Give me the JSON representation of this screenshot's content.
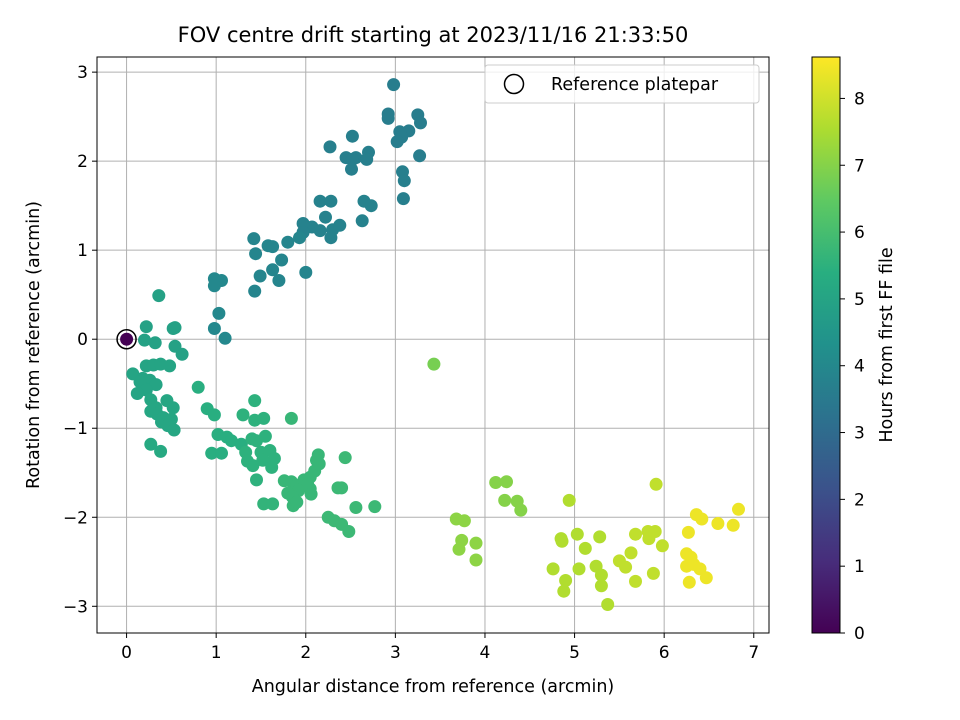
{
  "chart_data": {
    "type": "scatter",
    "title": "FOV centre drift starting at 2023/11/16 21:33:50",
    "xlabel": "Angular distance from reference (arcmin)",
    "ylabel": "Rotation from reference (arcmin)",
    "colorbar_label": "Hours from first FF file",
    "colormap": "viridis",
    "xlim": [
      -0.33,
      7.17
    ],
    "ylim": [
      -3.3,
      3.17
    ],
    "xticks": [
      0,
      1,
      2,
      3,
      4,
      5,
      6,
      7
    ],
    "yticks": [
      -3,
      -2,
      -1,
      0,
      1,
      2,
      3
    ],
    "clim": [
      0,
      8.62
    ],
    "cticks": [
      0,
      1,
      2,
      3,
      4,
      5,
      6,
      7,
      8
    ],
    "grid": true,
    "legend": {
      "placement": "top-right",
      "entries": [
        {
          "label": "Reference platepar",
          "marker": "open-circle"
        }
      ]
    },
    "reference_point": {
      "x": 0,
      "y": 0
    },
    "points": [
      {
        "x": 0.0,
        "y": 0.0,
        "c": 0.0
      },
      {
        "x": 2.98,
        "y": 2.86,
        "c": 3.6
      },
      {
        "x": 3.25,
        "y": 2.52,
        "c": 3.6
      },
      {
        "x": 2.92,
        "y": 2.53,
        "c": 3.6
      },
      {
        "x": 2.92,
        "y": 2.48,
        "c": 3.6
      },
      {
        "x": 3.15,
        "y": 2.34,
        "c": 3.6
      },
      {
        "x": 3.28,
        "y": 2.43,
        "c": 3.6
      },
      {
        "x": 3.05,
        "y": 2.33,
        "c": 3.6
      },
      {
        "x": 3.07,
        "y": 2.27,
        "c": 3.6
      },
      {
        "x": 3.02,
        "y": 2.22,
        "c": 3.6
      },
      {
        "x": 3.27,
        "y": 2.06,
        "c": 3.6
      },
      {
        "x": 2.52,
        "y": 2.28,
        "c": 3.7
      },
      {
        "x": 2.27,
        "y": 2.16,
        "c": 3.7
      },
      {
        "x": 2.45,
        "y": 2.04,
        "c": 3.7
      },
      {
        "x": 2.56,
        "y": 2.04,
        "c": 3.7
      },
      {
        "x": 2.52,
        "y": 2.02,
        "c": 3.7
      },
      {
        "x": 2.7,
        "y": 2.1,
        "c": 3.7
      },
      {
        "x": 2.68,
        "y": 2.02,
        "c": 3.7
      },
      {
        "x": 2.51,
        "y": 1.91,
        "c": 3.7
      },
      {
        "x": 3.08,
        "y": 1.88,
        "c": 3.7
      },
      {
        "x": 3.1,
        "y": 1.78,
        "c": 3.7
      },
      {
        "x": 3.09,
        "y": 1.58,
        "c": 3.7
      },
      {
        "x": 2.16,
        "y": 1.55,
        "c": 3.8
      },
      {
        "x": 2.28,
        "y": 1.55,
        "c": 3.8
      },
      {
        "x": 2.65,
        "y": 1.55,
        "c": 3.8
      },
      {
        "x": 2.73,
        "y": 1.5,
        "c": 3.8
      },
      {
        "x": 2.22,
        "y": 1.37,
        "c": 3.8
      },
      {
        "x": 2.63,
        "y": 1.33,
        "c": 3.8
      },
      {
        "x": 1.97,
        "y": 1.3,
        "c": 3.8
      },
      {
        "x": 2.07,
        "y": 1.26,
        "c": 3.8
      },
      {
        "x": 2.16,
        "y": 1.22,
        "c": 3.8
      },
      {
        "x": 2.3,
        "y": 1.23,
        "c": 3.8
      },
      {
        "x": 2.38,
        "y": 1.28,
        "c": 3.8
      },
      {
        "x": 1.97,
        "y": 1.2,
        "c": 3.8
      },
      {
        "x": 2.28,
        "y": 1.14,
        "c": 3.8
      },
      {
        "x": 1.42,
        "y": 1.13,
        "c": 3.9
      },
      {
        "x": 1.93,
        "y": 1.14,
        "c": 3.9
      },
      {
        "x": 1.58,
        "y": 1.05,
        "c": 3.9
      },
      {
        "x": 1.63,
        "y": 1.04,
        "c": 3.9
      },
      {
        "x": 1.8,
        "y": 1.09,
        "c": 3.9
      },
      {
        "x": 1.44,
        "y": 0.96,
        "c": 3.9
      },
      {
        "x": 1.73,
        "y": 0.89,
        "c": 3.9
      },
      {
        "x": 1.63,
        "y": 0.78,
        "c": 3.9
      },
      {
        "x": 1.49,
        "y": 0.71,
        "c": 3.9
      },
      {
        "x": 1.7,
        "y": 0.66,
        "c": 3.9
      },
      {
        "x": 2.0,
        "y": 0.75,
        "c": 3.9
      },
      {
        "x": 1.43,
        "y": 0.54,
        "c": 3.9
      },
      {
        "x": 0.98,
        "y": 0.68,
        "c": 4.0
      },
      {
        "x": 1.06,
        "y": 0.66,
        "c": 4.0
      },
      {
        "x": 0.98,
        "y": 0.6,
        "c": 4.0
      },
      {
        "x": 1.03,
        "y": 0.29,
        "c": 4.0
      },
      {
        "x": 0.98,
        "y": 0.12,
        "c": 4.0
      },
      {
        "x": 1.1,
        "y": 0.01,
        "c": 4.0
      },
      {
        "x": 0.36,
        "y": 0.49,
        "c": 4.9
      },
      {
        "x": 0.22,
        "y": 0.14,
        "c": 4.9
      },
      {
        "x": 0.54,
        "y": 0.13,
        "c": 4.9
      },
      {
        "x": 0.52,
        "y": 0.12,
        "c": 4.9
      },
      {
        "x": 0.2,
        "y": -0.01,
        "c": 4.9
      },
      {
        "x": 0.32,
        "y": -0.04,
        "c": 4.9
      },
      {
        "x": 0.54,
        "y": -0.08,
        "c": 4.9
      },
      {
        "x": 0.62,
        "y": -0.17,
        "c": 4.9
      },
      {
        "x": 0.22,
        "y": -0.3,
        "c": 5.0
      },
      {
        "x": 0.3,
        "y": -0.29,
        "c": 5.0
      },
      {
        "x": 0.38,
        "y": -0.28,
        "c": 5.0
      },
      {
        "x": 0.48,
        "y": -0.3,
        "c": 5.0
      },
      {
        "x": 0.07,
        "y": -0.39,
        "c": 5.0
      },
      {
        "x": 0.18,
        "y": -0.44,
        "c": 5.0
      },
      {
        "x": 0.26,
        "y": -0.46,
        "c": 5.0
      },
      {
        "x": 0.33,
        "y": -0.51,
        "c": 5.0
      },
      {
        "x": 0.15,
        "y": -0.48,
        "c": 5.0
      },
      {
        "x": 0.22,
        "y": -0.57,
        "c": 5.0
      },
      {
        "x": 0.12,
        "y": -0.61,
        "c": 5.0
      },
      {
        "x": 0.27,
        "y": -0.68,
        "c": 5.1
      },
      {
        "x": 0.45,
        "y": -0.69,
        "c": 5.1
      },
      {
        "x": 0.33,
        "y": -0.77,
        "c": 5.1
      },
      {
        "x": 0.52,
        "y": -0.77,
        "c": 5.1
      },
      {
        "x": 0.27,
        "y": -0.81,
        "c": 5.1
      },
      {
        "x": 0.34,
        "y": -0.84,
        "c": 5.1
      },
      {
        "x": 0.41,
        "y": -0.88,
        "c": 5.1
      },
      {
        "x": 0.39,
        "y": -0.93,
        "c": 5.1
      },
      {
        "x": 0.5,
        "y": -0.9,
        "c": 5.1
      },
      {
        "x": 0.46,
        "y": -0.97,
        "c": 5.1
      },
      {
        "x": 0.53,
        "y": -1.02,
        "c": 5.1
      },
      {
        "x": 0.27,
        "y": -1.18,
        "c": 5.2
      },
      {
        "x": 0.38,
        "y": -1.26,
        "c": 5.2
      },
      {
        "x": 0.8,
        "y": -0.54,
        "c": 5.4
      },
      {
        "x": 0.9,
        "y": -0.78,
        "c": 5.4
      },
      {
        "x": 0.98,
        "y": -0.85,
        "c": 5.4
      },
      {
        "x": 1.02,
        "y": -1.07,
        "c": 5.4
      },
      {
        "x": 1.12,
        "y": -1.1,
        "c": 5.4
      },
      {
        "x": 1.17,
        "y": -1.14,
        "c": 5.4
      },
      {
        "x": 0.95,
        "y": -1.28,
        "c": 5.4
      },
      {
        "x": 1.06,
        "y": -1.28,
        "c": 5.4
      },
      {
        "x": 1.28,
        "y": -1.18,
        "c": 5.4
      },
      {
        "x": 1.43,
        "y": -0.69,
        "c": 5.5
      },
      {
        "x": 1.3,
        "y": -0.85,
        "c": 5.5
      },
      {
        "x": 1.43,
        "y": -0.91,
        "c": 5.5
      },
      {
        "x": 1.53,
        "y": -0.89,
        "c": 5.5
      },
      {
        "x": 1.4,
        "y": -1.12,
        "c": 5.5
      },
      {
        "x": 1.45,
        "y": -1.14,
        "c": 5.5
      },
      {
        "x": 1.55,
        "y": -1.09,
        "c": 5.5
      },
      {
        "x": 1.33,
        "y": -1.27,
        "c": 5.5
      },
      {
        "x": 1.5,
        "y": -1.27,
        "c": 5.5
      },
      {
        "x": 1.6,
        "y": -1.25,
        "c": 5.5
      },
      {
        "x": 1.65,
        "y": -1.34,
        "c": 5.5
      },
      {
        "x": 1.35,
        "y": -1.37,
        "c": 5.5
      },
      {
        "x": 1.41,
        "y": -1.42,
        "c": 5.5
      },
      {
        "x": 1.52,
        "y": -1.36,
        "c": 5.5
      },
      {
        "x": 1.62,
        "y": -1.44,
        "c": 5.5
      },
      {
        "x": 1.45,
        "y": -1.58,
        "c": 5.5
      },
      {
        "x": 1.53,
        "y": -1.85,
        "c": 5.6
      },
      {
        "x": 1.63,
        "y": -1.85,
        "c": 5.6
      },
      {
        "x": 1.84,
        "y": -0.89,
        "c": 5.7
      },
      {
        "x": 1.76,
        "y": -1.59,
        "c": 5.7
      },
      {
        "x": 1.84,
        "y": -1.6,
        "c": 5.7
      },
      {
        "x": 1.9,
        "y": -1.64,
        "c": 5.7
      },
      {
        "x": 1.98,
        "y": -1.58,
        "c": 5.7
      },
      {
        "x": 2.05,
        "y": -1.55,
        "c": 5.7
      },
      {
        "x": 2.1,
        "y": -1.48,
        "c": 5.7
      },
      {
        "x": 2.02,
        "y": -1.63,
        "c": 5.7
      },
      {
        "x": 1.92,
        "y": -1.7,
        "c": 5.7
      },
      {
        "x": 2.05,
        "y": -1.68,
        "c": 5.7
      },
      {
        "x": 1.8,
        "y": -1.73,
        "c": 5.7
      },
      {
        "x": 1.85,
        "y": -1.77,
        "c": 5.7
      },
      {
        "x": 2.06,
        "y": -1.74,
        "c": 5.7
      },
      {
        "x": 1.86,
        "y": -1.87,
        "c": 5.7
      },
      {
        "x": 1.9,
        "y": -1.83,
        "c": 5.7
      },
      {
        "x": 2.14,
        "y": -1.3,
        "c": 5.7
      },
      {
        "x": 2.15,
        "y": -1.4,
        "c": 5.7
      },
      {
        "x": 2.12,
        "y": -1.36,
        "c": 5.7
      },
      {
        "x": 2.44,
        "y": -1.33,
        "c": 5.8
      },
      {
        "x": 2.36,
        "y": -1.67,
        "c": 5.8
      },
      {
        "x": 2.4,
        "y": -1.67,
        "c": 5.8
      },
      {
        "x": 2.25,
        "y": -2.0,
        "c": 5.8
      },
      {
        "x": 2.32,
        "y": -2.04,
        "c": 5.8
      },
      {
        "x": 2.4,
        "y": -2.08,
        "c": 5.8
      },
      {
        "x": 2.48,
        "y": -2.16,
        "c": 5.8
      },
      {
        "x": 2.56,
        "y": -1.89,
        "c": 5.8
      },
      {
        "x": 2.77,
        "y": -1.88,
        "c": 5.8
      },
      {
        "x": 3.43,
        "y": -0.28,
        "c": 6.8
      },
      {
        "x": 4.12,
        "y": -1.61,
        "c": 7.0
      },
      {
        "x": 4.24,
        "y": -1.6,
        "c": 7.0
      },
      {
        "x": 4.22,
        "y": -1.81,
        "c": 7.0
      },
      {
        "x": 4.36,
        "y": -1.82,
        "c": 7.0
      },
      {
        "x": 4.4,
        "y": -1.92,
        "c": 7.0
      },
      {
        "x": 3.68,
        "y": -2.02,
        "c": 7.1
      },
      {
        "x": 3.77,
        "y": -2.04,
        "c": 7.1
      },
      {
        "x": 3.74,
        "y": -2.26,
        "c": 7.1
      },
      {
        "x": 3.9,
        "y": -2.29,
        "c": 7.1
      },
      {
        "x": 3.71,
        "y": -2.36,
        "c": 7.1
      },
      {
        "x": 3.9,
        "y": -2.48,
        "c": 7.1
      },
      {
        "x": 4.94,
        "y": -1.81,
        "c": 7.6
      },
      {
        "x": 5.03,
        "y": -2.19,
        "c": 7.6
      },
      {
        "x": 4.85,
        "y": -2.24,
        "c": 7.6
      },
      {
        "x": 4.86,
        "y": -2.27,
        "c": 7.6
      },
      {
        "x": 5.12,
        "y": -2.35,
        "c": 7.6
      },
      {
        "x": 5.28,
        "y": -2.22,
        "c": 7.6
      },
      {
        "x": 4.76,
        "y": -2.58,
        "c": 7.6
      },
      {
        "x": 5.05,
        "y": -2.58,
        "c": 7.6
      },
      {
        "x": 5.24,
        "y": -2.55,
        "c": 7.6
      },
      {
        "x": 5.3,
        "y": -2.65,
        "c": 7.6
      },
      {
        "x": 4.9,
        "y": -2.71,
        "c": 7.6
      },
      {
        "x": 5.3,
        "y": -2.77,
        "c": 7.6
      },
      {
        "x": 4.88,
        "y": -2.83,
        "c": 7.6
      },
      {
        "x": 5.37,
        "y": -2.98,
        "c": 7.6
      },
      {
        "x": 5.91,
        "y": -1.63,
        "c": 7.8
      },
      {
        "x": 5.82,
        "y": -2.16,
        "c": 7.8
      },
      {
        "x": 5.68,
        "y": -2.19,
        "c": 7.8
      },
      {
        "x": 5.9,
        "y": -2.16,
        "c": 7.8
      },
      {
        "x": 5.98,
        "y": -2.32,
        "c": 7.8
      },
      {
        "x": 5.83,
        "y": -2.24,
        "c": 7.8
      },
      {
        "x": 5.63,
        "y": -2.4,
        "c": 7.8
      },
      {
        "x": 5.5,
        "y": -2.49,
        "c": 7.8
      },
      {
        "x": 5.57,
        "y": -2.56,
        "c": 7.8
      },
      {
        "x": 5.88,
        "y": -2.63,
        "c": 7.8
      },
      {
        "x": 5.68,
        "y": -2.72,
        "c": 7.8
      },
      {
        "x": 6.36,
        "y": -1.97,
        "c": 8.4
      },
      {
        "x": 6.42,
        "y": -2.02,
        "c": 8.4
      },
      {
        "x": 6.27,
        "y": -2.17,
        "c": 8.4
      },
      {
        "x": 6.6,
        "y": -2.07,
        "c": 8.4
      },
      {
        "x": 6.77,
        "y": -2.09,
        "c": 8.4
      },
      {
        "x": 6.83,
        "y": -1.91,
        "c": 8.4
      },
      {
        "x": 6.25,
        "y": -2.41,
        "c": 8.4
      },
      {
        "x": 6.3,
        "y": -2.45,
        "c": 8.4
      },
      {
        "x": 6.25,
        "y": -2.55,
        "c": 8.4
      },
      {
        "x": 6.33,
        "y": -2.53,
        "c": 8.4
      },
      {
        "x": 6.4,
        "y": -2.58,
        "c": 8.4
      },
      {
        "x": 6.47,
        "y": -2.68,
        "c": 8.4
      },
      {
        "x": 6.28,
        "y": -2.73,
        "c": 8.4
      }
    ]
  }
}
